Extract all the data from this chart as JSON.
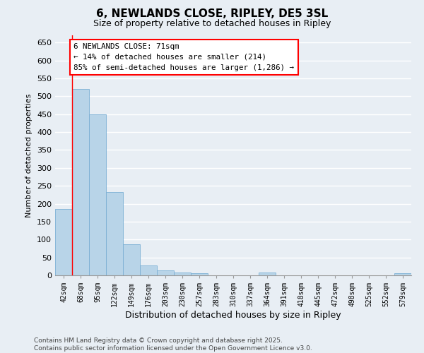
{
  "title": "6, NEWLANDS CLOSE, RIPLEY, DE5 3SL",
  "subtitle": "Size of property relative to detached houses in Ripley",
  "xlabel": "Distribution of detached houses by size in Ripley",
  "ylabel": "Number of detached properties",
  "categories": [
    "42sqm",
    "68sqm",
    "95sqm",
    "122sqm",
    "149sqm",
    "176sqm",
    "203sqm",
    "230sqm",
    "257sqm",
    "283sqm",
    "310sqm",
    "337sqm",
    "364sqm",
    "391sqm",
    "418sqm",
    "445sqm",
    "472sqm",
    "498sqm",
    "525sqm",
    "552sqm",
    "579sqm"
  ],
  "values": [
    186,
    520,
    450,
    232,
    87,
    27,
    14,
    8,
    5,
    0,
    0,
    0,
    8,
    0,
    0,
    0,
    0,
    0,
    0,
    0,
    5
  ],
  "bar_color": "#b8d4e8",
  "bar_edgecolor": "#7bafd4",
  "vline_color": "red",
  "annotation_box_text": "6 NEWLANDS CLOSE: 71sqm\n← 14% of detached houses are smaller (214)\n85% of semi-detached houses are larger (1,286) →",
  "ylim": [
    0,
    670
  ],
  "yticks": [
    0,
    50,
    100,
    150,
    200,
    250,
    300,
    350,
    400,
    450,
    500,
    550,
    600,
    650
  ],
  "footer_line1": "Contains HM Land Registry data © Crown copyright and database right 2025.",
  "footer_line2": "Contains public sector information licensed under the Open Government Licence v3.0.",
  "bg_color": "#e8eef4",
  "grid_color": "#ffffff"
}
